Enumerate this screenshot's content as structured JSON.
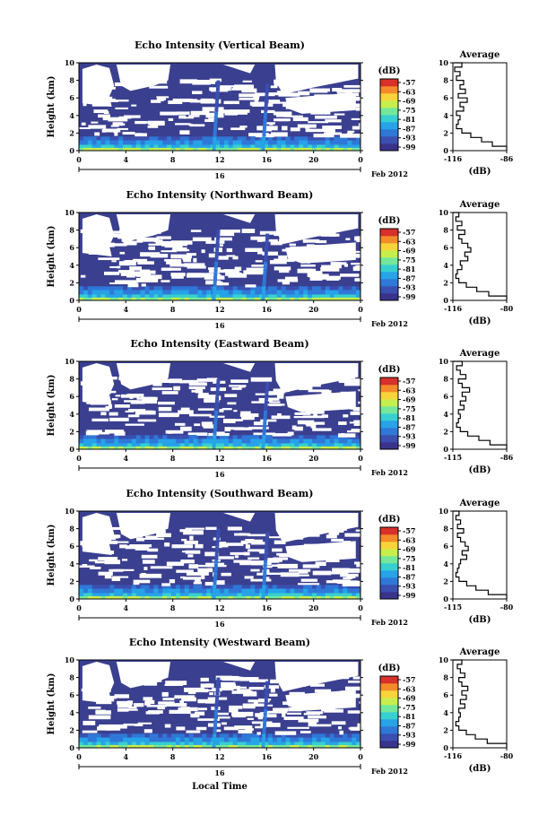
{
  "chart_data": [
    {
      "type": "heatmap",
      "title": "Echo Intensity (Vertical Beam)",
      "ylabel": "Height (km)",
      "x_ticks": [
        "0",
        "4",
        "8",
        "12",
        "16",
        "20",
        "0"
      ],
      "y_ticks": [
        "0",
        "2",
        "4",
        "6",
        "8",
        "10"
      ],
      "xlim": [
        0,
        24
      ],
      "ylim": [
        0,
        10
      ],
      "date_marker": "16",
      "date_label": "Feb 2012",
      "colorbar": {
        "unit": "(dB)",
        "ticks": [
          "-57",
          "-63",
          "-69",
          "-75",
          "-81",
          "-87",
          "-93",
          "-99"
        ]
      },
      "profile": {
        "title": "Average",
        "xlabel": "(dB)",
        "x_ticks": [
          "-116",
          "-86"
        ],
        "y_ticks": [
          "0",
          "2",
          "4",
          "6",
          "8",
          "10"
        ],
        "xlim": [
          -116,
          -86
        ],
        "heights": [
          0,
          0.5,
          1,
          1.5,
          2,
          2.5,
          3,
          3.5,
          4,
          4.5,
          5,
          5.5,
          6,
          6.5,
          7,
          7.5,
          8,
          8.5,
          9,
          9.5,
          10
        ],
        "values": [
          -86,
          -94,
          -100,
          -106,
          -111,
          -114,
          -113,
          -112,
          -114,
          -110,
          -112,
          -108,
          -113,
          -109,
          -112,
          -110,
          -114,
          -112,
          -115,
          -111,
          -116
        ]
      }
    },
    {
      "type": "heatmap",
      "title": "Echo Intensity (Northward Beam)",
      "ylabel": "Height (km)",
      "x_ticks": [
        "0",
        "4",
        "8",
        "12",
        "16",
        "20",
        "0"
      ],
      "y_ticks": [
        "0",
        "2",
        "4",
        "6",
        "8",
        "10"
      ],
      "xlim": [
        0,
        24
      ],
      "ylim": [
        0,
        10
      ],
      "date_marker": "16",
      "date_label": "Feb 2012",
      "colorbar": {
        "unit": "(dB)",
        "ticks": [
          "-57",
          "-63",
          "-69",
          "-75",
          "-81",
          "-87",
          "-93",
          "-99"
        ]
      },
      "profile": {
        "title": "Average",
        "xlabel": "(dB)",
        "x_ticks": [
          "-116",
          "-80"
        ],
        "y_ticks": [
          "0",
          "2",
          "4",
          "6",
          "8",
          "10"
        ],
        "xlim": [
          -116,
          -80
        ],
        "heights": [
          0,
          0.5,
          1,
          1.5,
          2,
          2.5,
          3,
          3.5,
          4,
          4.5,
          5,
          5.5,
          6,
          6.5,
          7,
          7.5,
          8,
          8.5,
          9,
          9.5,
          10
        ],
        "values": [
          -80,
          -92,
          -100,
          -107,
          -112,
          -114,
          -113,
          -110,
          -111,
          -106,
          -108,
          -104,
          -106,
          -110,
          -112,
          -108,
          -113,
          -110,
          -114,
          -112,
          -116
        ]
      }
    },
    {
      "type": "heatmap",
      "title": "Echo Intensity (Eastward Beam)",
      "ylabel": "Height (km)",
      "x_ticks": [
        "0",
        "4",
        "8",
        "12",
        "16",
        "20",
        "0"
      ],
      "y_ticks": [
        "0",
        "2",
        "4",
        "6",
        "8",
        "10"
      ],
      "xlim": [
        0,
        24
      ],
      "ylim": [
        0,
        10
      ],
      "date_marker": "16",
      "date_label": "Feb 2012",
      "colorbar": {
        "unit": "(dB)",
        "ticks": [
          "-57",
          "-63",
          "-69",
          "-75",
          "-81",
          "-87",
          "-93",
          "-99"
        ]
      },
      "profile": {
        "title": "Average",
        "xlabel": "(dB)",
        "x_ticks": [
          "-115",
          "-86"
        ],
        "y_ticks": [
          "0",
          "2",
          "4",
          "6",
          "8",
          "10"
        ],
        "xlim": [
          -115,
          -86
        ],
        "heights": [
          0,
          0.5,
          1,
          1.5,
          2,
          2.5,
          3,
          3.5,
          4,
          4.5,
          5,
          5.5,
          6,
          6.5,
          7,
          7.5,
          8,
          8.5,
          9,
          9.5,
          10
        ],
        "values": [
          -86,
          -95,
          -101,
          -107,
          -111,
          -113,
          -112,
          -111,
          -112,
          -109,
          -111,
          -108,
          -110,
          -106,
          -110,
          -112,
          -108,
          -111,
          -113,
          -110,
          -115
        ]
      }
    },
    {
      "type": "heatmap",
      "title": "Echo Intensity (Southward Beam)",
      "ylabel": "Height (km)",
      "x_ticks": [
        "0",
        "4",
        "8",
        "12",
        "16",
        "20",
        "0"
      ],
      "y_ticks": [
        "0",
        "2",
        "4",
        "6",
        "8",
        "10"
      ],
      "xlim": [
        0,
        24
      ],
      "ylim": [
        0,
        10
      ],
      "date_marker": "16",
      "date_label": "Feb 2012",
      "colorbar": {
        "unit": "(dB)",
        "ticks": [
          "-57",
          "-63",
          "-69",
          "-75",
          "-81",
          "-87",
          "-93",
          "-99"
        ]
      },
      "profile": {
        "title": "Average",
        "xlabel": "(dB)",
        "x_ticks": [
          "-115",
          "-80"
        ],
        "y_ticks": [
          "0",
          "2",
          "4",
          "6",
          "8",
          "10"
        ],
        "xlim": [
          -115,
          -80
        ],
        "heights": [
          0,
          0.5,
          1,
          1.5,
          2,
          2.5,
          3,
          3.5,
          4,
          4.5,
          5,
          5.5,
          6,
          6.5,
          7,
          7.5,
          8,
          8.5,
          9,
          9.5,
          10
        ],
        "values": [
          -80,
          -92,
          -100,
          -106,
          -111,
          -113,
          -112,
          -111,
          -110,
          -106,
          -109,
          -105,
          -107,
          -110,
          -112,
          -108,
          -112,
          -110,
          -113,
          -111,
          -115
        ]
      }
    },
    {
      "type": "heatmap",
      "title": "Echo Intensity (Westward Beam)",
      "ylabel": "Height (km)",
      "x_ticks": [
        "0",
        "4",
        "8",
        "12",
        "16",
        "20",
        "0"
      ],
      "y_ticks": [
        "0",
        "2",
        "4",
        "6",
        "8",
        "10"
      ],
      "xlim": [
        0,
        24
      ],
      "ylim": [
        0,
        10
      ],
      "date_marker": "16",
      "date_label": "Feb 2012",
      "colorbar": {
        "unit": "(dB)",
        "ticks": [
          "-57",
          "-63",
          "-69",
          "-75",
          "-81",
          "-87",
          "-93",
          "-99"
        ]
      },
      "profile": {
        "title": "Average",
        "xlabel": "(dB)",
        "x_ticks": [
          "-116",
          "-80"
        ],
        "y_ticks": [
          "0",
          "2",
          "4",
          "6",
          "8",
          "10"
        ],
        "xlim": [
          -116,
          -80
        ],
        "heights": [
          0,
          0.5,
          1,
          1.5,
          2,
          2.5,
          3,
          3.5,
          4,
          4.5,
          5,
          5.5,
          6,
          6.5,
          7,
          7.5,
          8,
          8.5,
          9,
          9.5,
          10
        ],
        "values": [
          -80,
          -93,
          -101,
          -107,
          -112,
          -114,
          -112,
          -111,
          -112,
          -108,
          -111,
          -107,
          -110,
          -106,
          -110,
          -112,
          -108,
          -111,
          -113,
          -110,
          -116
        ]
      },
      "xlabel": "Local Time"
    }
  ],
  "colors": {
    "background_echo": "#3a3f8f",
    "colormap": [
      "#39338c",
      "#3b4fb0",
      "#2f78d8",
      "#27a3e8",
      "#37d0d0",
      "#74e89a",
      "#c6ef4e",
      "#f8d43a",
      "#f58a2a",
      "#d8302a"
    ]
  }
}
